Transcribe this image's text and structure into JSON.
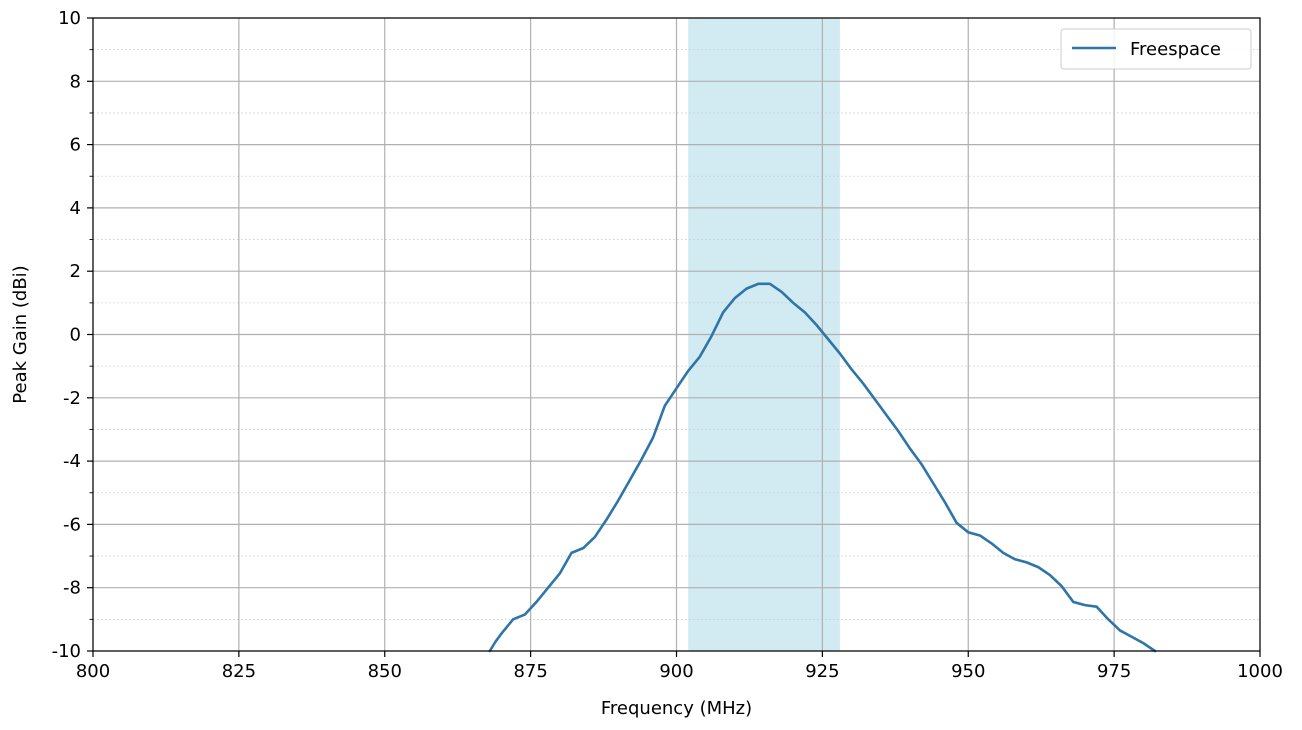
{
  "chart_data": {
    "type": "line",
    "title": "",
    "xlabel": "Frequency (MHz)",
    "ylabel": "Peak Gain (dBi)",
    "xlim": [
      800,
      1000
    ],
    "ylim": [
      -10,
      10
    ],
    "x_ticks": [
      800,
      825,
      850,
      875,
      900,
      925,
      950,
      975,
      1000
    ],
    "x_tick_labels": [
      "800",
      "825",
      "850",
      "875",
      "900",
      "925",
      "950",
      "975",
      "1000"
    ],
    "y_ticks": [
      -10,
      -8,
      -6,
      -4,
      -2,
      0,
      2,
      4,
      6,
      8,
      10
    ],
    "y_tick_labels": [
      "-10",
      "-8",
      "-6",
      "-4",
      "-2",
      "0",
      "2",
      "4",
      "6",
      "8",
      "10"
    ],
    "grid": true,
    "minor_grid": true,
    "legend_position": "top-right",
    "highlight_band": {
      "x_start": 902,
      "x_end": 928,
      "color": "#add8e6"
    },
    "series": [
      {
        "name": "Freespace",
        "color": "#2e75a8",
        "x": [
          868,
          869,
          870,
          872,
          874,
          876,
          878,
          880,
          882,
          884,
          886,
          888,
          890,
          892,
          894,
          896,
          898,
          900,
          902,
          904,
          906,
          908,
          910,
          912,
          914,
          916,
          918,
          920,
          922,
          924,
          926,
          928,
          930,
          932,
          934,
          936,
          938,
          940,
          942,
          944,
          946,
          948,
          950,
          952,
          954,
          956,
          958,
          960,
          962,
          964,
          966,
          968,
          970,
          972,
          974,
          976,
          978,
          980,
          982
        ],
        "y": [
          -10,
          -9.7,
          -9.45,
          -9,
          -8.85,
          -8.45,
          -8,
          -7.55,
          -6.9,
          -6.75,
          -6.4,
          -5.85,
          -5.25,
          -4.6,
          -3.95,
          -3.25,
          -2.25,
          -1.7,
          -1.15,
          -0.7,
          -0.05,
          0.7,
          1.15,
          1.45,
          1.6,
          1.6,
          1.35,
          1.0,
          0.7,
          0.3,
          -0.15,
          -0.6,
          -1.1,
          -1.55,
          -2.05,
          -2.55,
          -3.05,
          -3.6,
          -4.1,
          -4.7,
          -5.3,
          -5.95,
          -6.25,
          -6.35,
          -6.6,
          -6.9,
          -7.1,
          -7.2,
          -7.35,
          -7.6,
          -7.95,
          -8.45,
          -8.55,
          -8.6,
          -9.0,
          -9.35,
          -9.55,
          -9.75,
          -10.0
        ]
      }
    ]
  }
}
